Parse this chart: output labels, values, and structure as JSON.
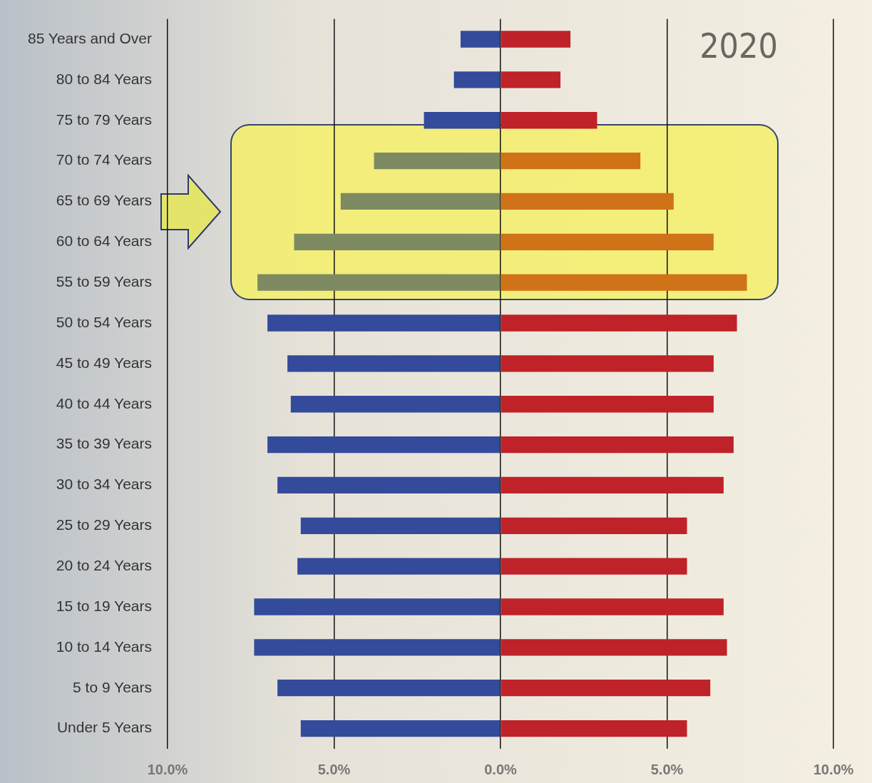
{
  "chart_data": {
    "type": "bar",
    "orientation": "horizontal",
    "stacked": true,
    "categories": [
      "85 Years and Over",
      "80 to 84 Years",
      "75 to 79 Years",
      "70 to 74 Years",
      "65 to 69 Years",
      "60 to 64 Years",
      "55 to 59 Years",
      "50 to 54 Years",
      "45 to 49 Years",
      "40 to 44 Years",
      "35 to 39 Years",
      "30 to 34 Years",
      "25 to 29 Years",
      "20 to 24 Years",
      "15 to 19 Years",
      "10 to 14 Years",
      "5 to 9 Years",
      "Under 5 Years"
    ],
    "series": [
      {
        "colors": [
          "#344a9a",
          "#344a9a",
          "#344a9a",
          "#7e8a62",
          "#7e8a62",
          "#7e8a62",
          "#7e8a62",
          "#344a9a",
          "#344a9a",
          "#344a9a",
          "#344a9a",
          "#344a9a",
          "#344a9a",
          "#344a9a",
          "#344a9a",
          "#344a9a",
          "#344a9a",
          "#344a9a"
        ],
        "values": [
          -1.2,
          -1.4,
          -2.3,
          -3.8,
          -4.8,
          -6.2,
          -7.3,
          -7.0,
          -6.4,
          -6.3,
          -7.0,
          -6.7,
          -6.0,
          -6.1,
          -7.4,
          -7.4,
          -6.7,
          -6.0
        ]
      },
      {
        "colors": [
          "#bf2228",
          "#bf2228",
          "#bf2228",
          "#d07218",
          "#d07218",
          "#d07218",
          "#d07218",
          "#bf2228",
          "#bf2228",
          "#bf2228",
          "#bf2228",
          "#bf2228",
          "#bf2228",
          "#bf2228",
          "#bf2228",
          "#bf2228",
          "#bf2228",
          "#bf2228"
        ],
        "values": [
          2.1,
          1.8,
          2.9,
          4.2,
          5.2,
          6.4,
          7.4,
          7.1,
          6.4,
          6.4,
          7.0,
          6.7,
          5.6,
          5.6,
          6.7,
          6.8,
          6.3,
          5.6
        ]
      }
    ],
    "xlim": [
      -10,
      10
    ],
    "xticks": [
      {
        "value": -10,
        "label": "10.0%"
      },
      {
        "value": -5,
        "label": "5.0%"
      },
      {
        "value": 0,
        "label": "0.0%"
      },
      {
        "value": 5,
        "label": "5.0%"
      },
      {
        "value": 10,
        "label": "10.0%"
      }
    ],
    "grid": "x",
    "annotations": [
      "2020"
    ]
  }
}
